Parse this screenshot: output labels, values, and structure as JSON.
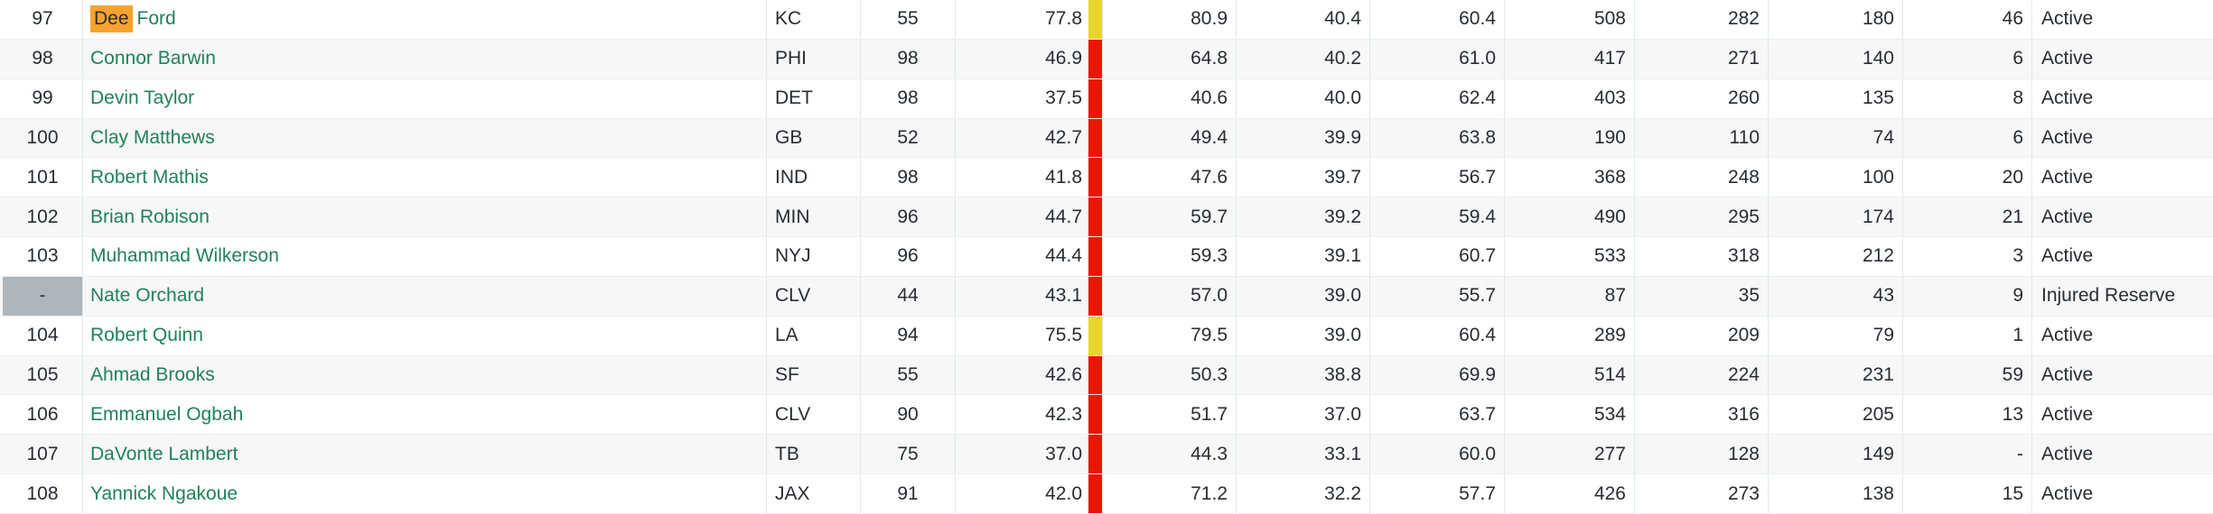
{
  "colors": {
    "grade_bar_mid_yellow": "#e9d42f",
    "grade_bar_low_red": "#ec1505",
    "search_highlight_orange": "#f7a22e",
    "player_link_green": "#1f8159",
    "unranked_rank_cell_gray": "#aeb5bb",
    "row_stripe": "#f7f7f8"
  },
  "rows": [
    {
      "rank": "97",
      "unranked": false,
      "name_highlight": "Dee",
      "name_rest": "Ford",
      "team": "KC",
      "jersey": "55",
      "grade": "77.8",
      "grade_level": "mid",
      "v1": "80.9",
      "v2": "40.4",
      "v3": "60.4",
      "v4": "508",
      "v5": "282",
      "v6": "180",
      "v7": "46",
      "status": "Active"
    },
    {
      "rank": "98",
      "unranked": false,
      "name_highlight": "",
      "name_rest": "Connor Barwin",
      "team": "PHI",
      "jersey": "98",
      "grade": "46.9",
      "grade_level": "low",
      "v1": "64.8",
      "v2": "40.2",
      "v3": "61.0",
      "v4": "417",
      "v5": "271",
      "v6": "140",
      "v7": "6",
      "status": "Active"
    },
    {
      "rank": "99",
      "unranked": false,
      "name_highlight": "",
      "name_rest": "Devin Taylor",
      "team": "DET",
      "jersey": "98",
      "grade": "37.5",
      "grade_level": "low",
      "v1": "40.6",
      "v2": "40.0",
      "v3": "62.4",
      "v4": "403",
      "v5": "260",
      "v6": "135",
      "v7": "8",
      "status": "Active"
    },
    {
      "rank": "100",
      "unranked": false,
      "name_highlight": "",
      "name_rest": "Clay Matthews",
      "team": "GB",
      "jersey": "52",
      "grade": "42.7",
      "grade_level": "low",
      "v1": "49.4",
      "v2": "39.9",
      "v3": "63.8",
      "v4": "190",
      "v5": "110",
      "v6": "74",
      "v7": "6",
      "status": "Active"
    },
    {
      "rank": "101",
      "unranked": false,
      "name_highlight": "",
      "name_rest": "Robert Mathis",
      "team": "IND",
      "jersey": "98",
      "grade": "41.8",
      "grade_level": "low",
      "v1": "47.6",
      "v2": "39.7",
      "v3": "56.7",
      "v4": "368",
      "v5": "248",
      "v6": "100",
      "v7": "20",
      "status": "Active"
    },
    {
      "rank": "102",
      "unranked": false,
      "name_highlight": "",
      "name_rest": "Brian Robison",
      "team": "MIN",
      "jersey": "96",
      "grade": "44.7",
      "grade_level": "low",
      "v1": "59.7",
      "v2": "39.2",
      "v3": "59.4",
      "v4": "490",
      "v5": "295",
      "v6": "174",
      "v7": "21",
      "status": "Active"
    },
    {
      "rank": "103",
      "unranked": false,
      "name_highlight": "",
      "name_rest": "Muhammad Wilkerson",
      "team": "NYJ",
      "jersey": "96",
      "grade": "44.4",
      "grade_level": "low",
      "v1": "59.3",
      "v2": "39.1",
      "v3": "60.7",
      "v4": "533",
      "v5": "318",
      "v6": "212",
      "v7": "3",
      "status": "Active"
    },
    {
      "rank": "-",
      "unranked": true,
      "name_highlight": "",
      "name_rest": "Nate Orchard",
      "team": "CLV",
      "jersey": "44",
      "grade": "43.1",
      "grade_level": "low",
      "v1": "57.0",
      "v2": "39.0",
      "v3": "55.7",
      "v4": "87",
      "v5": "35",
      "v6": "43",
      "v7": "9",
      "status": "Injured Reserve"
    },
    {
      "rank": "104",
      "unranked": false,
      "name_highlight": "",
      "name_rest": "Robert Quinn",
      "team": "LA",
      "jersey": "94",
      "grade": "75.5",
      "grade_level": "mid",
      "v1": "79.5",
      "v2": "39.0",
      "v3": "60.4",
      "v4": "289",
      "v5": "209",
      "v6": "79",
      "v7": "1",
      "status": "Active"
    },
    {
      "rank": "105",
      "unranked": false,
      "name_highlight": "",
      "name_rest": "Ahmad Brooks",
      "team": "SF",
      "jersey": "55",
      "grade": "42.6",
      "grade_level": "low",
      "v1": "50.3",
      "v2": "38.8",
      "v3": "69.9",
      "v4": "514",
      "v5": "224",
      "v6": "231",
      "v7": "59",
      "status": "Active"
    },
    {
      "rank": "106",
      "unranked": false,
      "name_highlight": "",
      "name_rest": "Emmanuel Ogbah",
      "team": "CLV",
      "jersey": "90",
      "grade": "42.3",
      "grade_level": "low",
      "v1": "51.7",
      "v2": "37.0",
      "v3": "63.7",
      "v4": "534",
      "v5": "316",
      "v6": "205",
      "v7": "13",
      "status": "Active"
    },
    {
      "rank": "107",
      "unranked": false,
      "name_highlight": "",
      "name_rest": "DaVonte Lambert",
      "team": "TB",
      "jersey": "75",
      "grade": "37.0",
      "grade_level": "low",
      "v1": "44.3",
      "v2": "33.1",
      "v3": "60.0",
      "v4": "277",
      "v5": "128",
      "v6": "149",
      "v7": "-",
      "status": "Active"
    },
    {
      "rank": "108",
      "unranked": false,
      "name_highlight": "",
      "name_rest": "Yannick Ngakoue",
      "team": "JAX",
      "jersey": "91",
      "grade": "42.0",
      "grade_level": "low",
      "v1": "71.2",
      "v2": "32.2",
      "v3": "57.7",
      "v4": "426",
      "v5": "273",
      "v6": "138",
      "v7": "15",
      "status": "Active"
    }
  ]
}
